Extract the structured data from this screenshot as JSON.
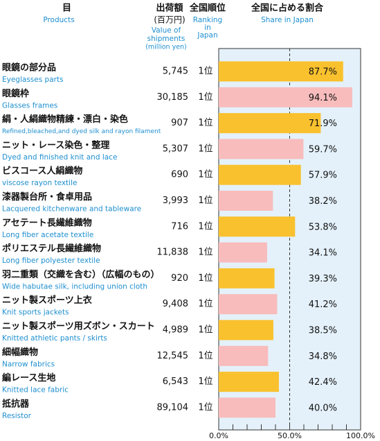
{
  "chart_data": {
    "type": "bar",
    "orientation": "horizontal",
    "headers": {
      "product": "品目",
      "product_en": "Products",
      "shipments": "出荷額",
      "shipments_unit": "(百万円)",
      "shipments_en": [
        "Value of",
        "shipments",
        "(million yen)"
      ],
      "rank": "全国順位",
      "rank_en": [
        "Ranking",
        "in",
        "Japan"
      ],
      "share": "全国に占める割合",
      "share_en": "Share in Japan"
    },
    "categories": [
      "眼鏡の部分品",
      "眼鏡枠",
      "絹・人絹織物精練・漂白・染色",
      "ニット・レース染色・整理",
      "ビスコース人絹織物",
      "漆器製台所・食卓用品",
      "アセテート長繊維織物",
      "ポリエステル長繊維織物",
      "羽二重類（交織を含む）（広幅のもの）",
      "ニット製スポーツ上衣",
      "ニット製スポーツ用ズボン・スカート",
      "細幅織物",
      "編レース生地",
      "抵抗器"
    ],
    "categories_en": [
      "Eyeglasses parts",
      "Glasses frames",
      "Refined,bleached,and dyed silk and rayon filament",
      "Dyed and finished knit and lace",
      "viscose rayon textile",
      "Lacquered kitchenware and tableware",
      "Long fiber acetate textile",
      "Long fiber polyester textile",
      "Wide habutae silk, including union cloth",
      "Knit sports jackets",
      "Knitted athletic pants / skirts",
      "Narrow fabrics",
      "Knitted lace fabric",
      "Resistor"
    ],
    "shipments": [
      "5,745",
      "30,185",
      "907",
      "5,307",
      "690",
      "3,993",
      "716",
      "11,838",
      "920",
      "9,408",
      "4,989",
      "12,545",
      "6,543",
      "89,104"
    ],
    "ranks": [
      "1位",
      "1位",
      "1位",
      "1位",
      "1位",
      "1位",
      "1位",
      "1位",
      "1位",
      "1位",
      "1位",
      "1位",
      "1位",
      "1位"
    ],
    "values": [
      87.7,
      94.1,
      71.9,
      59.7,
      57.9,
      38.2,
      53.8,
      34.1,
      39.3,
      41.2,
      38.5,
      34.8,
      42.4,
      40.0
    ],
    "value_labels": [
      "87.7%",
      "94.1%",
      "71.9%",
      "59.7%",
      "57.9%",
      "38.2%",
      "53.8%",
      "34.1%",
      "39.3%",
      "41.2%",
      "38.5%",
      "34.8%",
      "42.4%",
      "40.0%"
    ],
    "colors": [
      "#f9c12e",
      "#f8bcbc",
      "#f9c12e",
      "#f8bcbc",
      "#f9c12e",
      "#f8bcbc",
      "#f9c12e",
      "#f8bcbc",
      "#f9c12e",
      "#f8bcbc",
      "#f9c12e",
      "#f8bcbc",
      "#f9c12e",
      "#f8bcbc"
    ],
    "xlim": [
      0,
      100
    ],
    "xticks": [
      {
        "value": 0,
        "label": "0.0%"
      },
      {
        "value": 50,
        "label": "50.0%"
      },
      {
        "value": 100,
        "label": "100.0%"
      }
    ],
    "minor_xticks": [
      10,
      20,
      30,
      40,
      60,
      70,
      80,
      90
    ],
    "reference_line": 50
  }
}
